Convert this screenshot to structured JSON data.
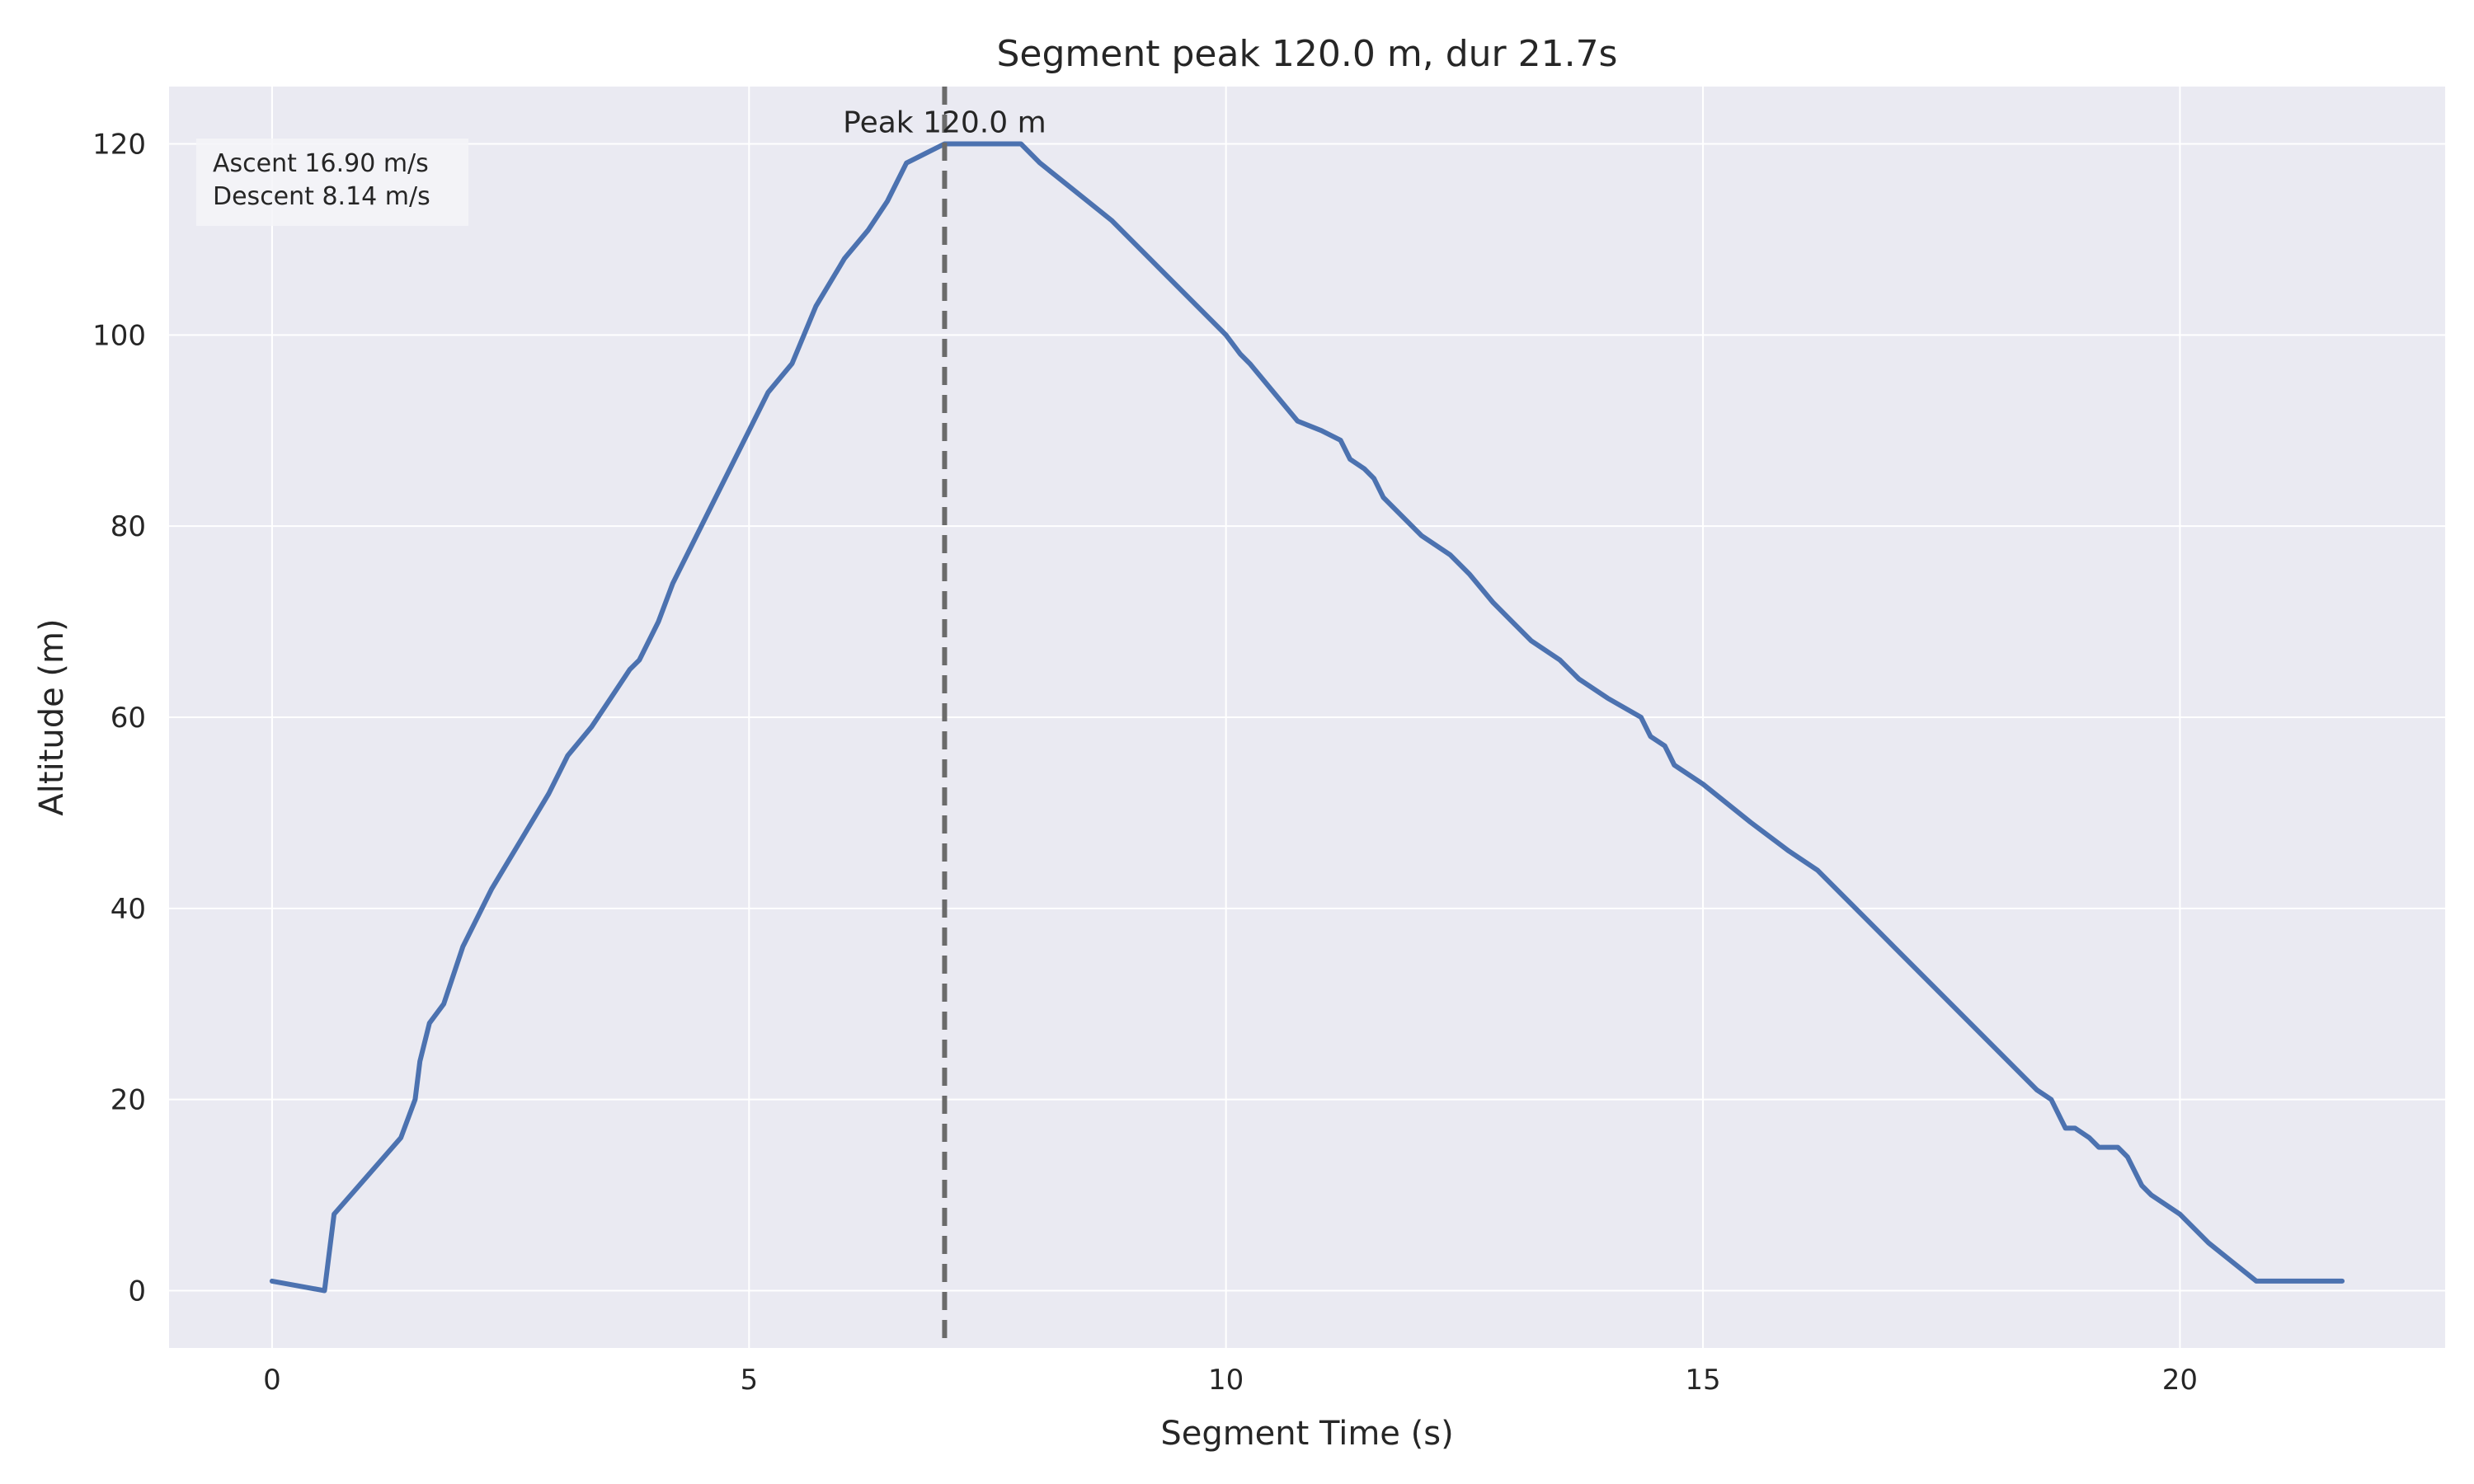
{
  "chart_data": {
    "type": "line",
    "title": "Segment peak 120.0 m, dur 21.7s",
    "xlabel": "Segment Time (s)",
    "ylabel": "Altitude (m)",
    "xlim": [
      -1.08,
      22.78
    ],
    "ylim": [
      -6,
      126
    ],
    "xticks": [
      0,
      5,
      10,
      15,
      20
    ],
    "yticks": [
      0,
      20,
      40,
      60,
      80,
      100,
      120
    ],
    "grid": true,
    "line_color": "#4c72b0",
    "peak_line_color": "#6b6b6b",
    "plot_background": "#eaeaf2",
    "peak": {
      "x": 7.05,
      "label": "Peak 120.0 m"
    },
    "stats_box": {
      "ascent": "Ascent 16.90 m/s",
      "descent": "Descent 8.14 m/s"
    },
    "series": [
      {
        "x": [
          0,
          0.55,
          0.65,
          1.0,
          1.35,
          1.5,
          1.55,
          1.65,
          1.8,
          2.0,
          2.3,
          2.6,
          2.9,
          3.1,
          3.35,
          3.55,
          3.75,
          3.85,
          4.05,
          4.2,
          4.6,
          5.0,
          5.2,
          5.45,
          5.7,
          6.0,
          6.25,
          6.45,
          6.55,
          6.65,
          6.85,
          7.05,
          7.55,
          7.85,
          8.05,
          8.3,
          8.8,
          9.3,
          9.7,
          10.0,
          10.15,
          10.25,
          10.5,
          10.75,
          11.0,
          11.2,
          11.3,
          11.45,
          11.55,
          11.65,
          11.85,
          12.05,
          12.35,
          12.55,
          12.8,
          13.0,
          13.2,
          13.5,
          13.7,
          14.0,
          14.35,
          14.45,
          14.6,
          14.65,
          14.7,
          15.0,
          15.5,
          15.9,
          16.2,
          16.5,
          17.0,
          17.5,
          18.0,
          18.3,
          18.5,
          18.65,
          18.75,
          18.8,
          18.9,
          19.05,
          19.15,
          19.35,
          19.45,
          19.5,
          19.6,
          19.7,
          19.85,
          20.0,
          20.3,
          20.55,
          20.8,
          21.0,
          21.7
        ],
        "y": [
          1,
          0,
          8,
          12,
          16,
          20,
          24,
          28,
          30,
          36,
          42,
          47,
          52,
          56,
          59,
          62,
          65,
          66,
          70,
          74,
          82,
          90,
          94,
          97,
          103,
          108,
          111,
          114,
          116,
          118,
          119,
          120,
          120,
          120,
          118,
          116,
          112,
          107,
          103,
          100,
          98,
          97,
          94,
          91,
          90,
          89,
          87,
          86,
          85,
          83,
          81,
          79,
          77,
          75,
          72,
          70,
          68,
          66,
          64,
          62,
          60,
          58,
          57,
          56,
          55,
          53,
          49,
          46,
          44,
          41,
          36,
          31,
          26,
          23,
          21,
          20,
          18,
          17,
          17,
          16,
          15,
          15,
          14,
          13,
          11,
          10,
          9,
          8,
          5,
          3,
          1,
          1,
          1
        ]
      }
    ]
  }
}
